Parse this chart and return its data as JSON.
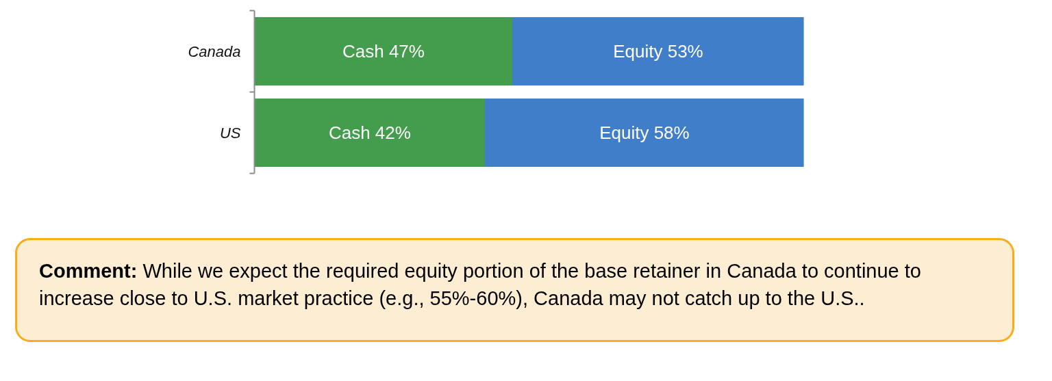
{
  "chart_data": {
    "type": "bar",
    "orientation": "horizontal",
    "stacked": true,
    "categories": [
      "Canada",
      "US"
    ],
    "series": [
      {
        "color": "#449d4c",
        "values": [
          47,
          42
        ],
        "value_labels": [
          "Cash 47%",
          "Cash 42%"
        ]
      },
      {
        "color": "#407ec9",
        "values": [
          53,
          58
        ],
        "value_labels": [
          "Equity 53%",
          "Equity 58%"
        ]
      }
    ],
    "tick_labels": "y",
    "annotations": [
      "Comment: While we expect the required equity portion of the base retainer in Canada to continue to increase close to U.S. market practice (e.g., 55%-60%), Canada may not catch up to the U.S.."
    ]
  }
}
